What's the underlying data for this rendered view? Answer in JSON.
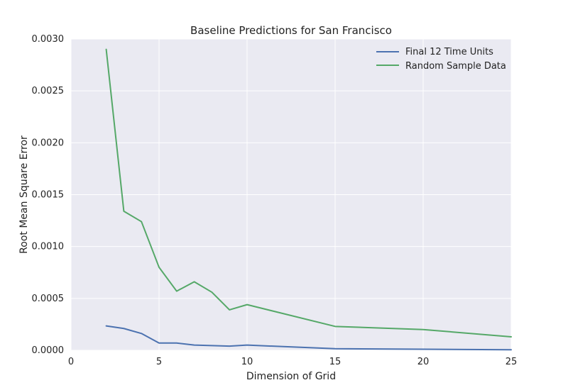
{
  "chart_data": {
    "type": "line",
    "title": "Baseline Predictions for San Francisco",
    "xlabel": "Dimension of Grid",
    "ylabel": "Root Mean Square Error",
    "xlim": [
      0,
      25
    ],
    "ylim": [
      0,
      0.003
    ],
    "xticks": [
      0,
      5,
      10,
      15,
      20,
      25
    ],
    "yticks": [
      0,
      0.0005,
      0.001,
      0.0015,
      0.002,
      0.0025,
      0.003
    ],
    "xtick_labels": [
      "0",
      "5",
      "10",
      "15",
      "20",
      "25"
    ],
    "ytick_labels": [
      "0.0000",
      "0.0005",
      "0.0010",
      "0.0015",
      "0.0020",
      "0.0025",
      "0.0030"
    ],
    "grid": true,
    "legend_position": "top-right",
    "series": [
      {
        "name": "Final 12 Time Units",
        "color": "#4c72b0",
        "x": [
          2,
          3,
          4,
          5,
          6,
          7,
          8,
          9,
          10,
          15,
          20,
          25
        ],
        "y": [
          0.000235,
          0.00021,
          0.000162,
          7e-05,
          7e-05,
          5e-05,
          4.5e-05,
          4e-05,
          5e-05,
          1.5e-05,
          1e-05,
          5e-06
        ]
      },
      {
        "name": "Random Sample Data",
        "color": "#55a868",
        "x": [
          2,
          3,
          4,
          5,
          6,
          7,
          8,
          9,
          10,
          15,
          20,
          25
        ],
        "y": [
          0.0029,
          0.00134,
          0.00124,
          0.0008,
          0.00057,
          0.00066,
          0.00056,
          0.00039,
          0.00044,
          0.00023,
          0.0002,
          0.00013
        ]
      }
    ]
  }
}
